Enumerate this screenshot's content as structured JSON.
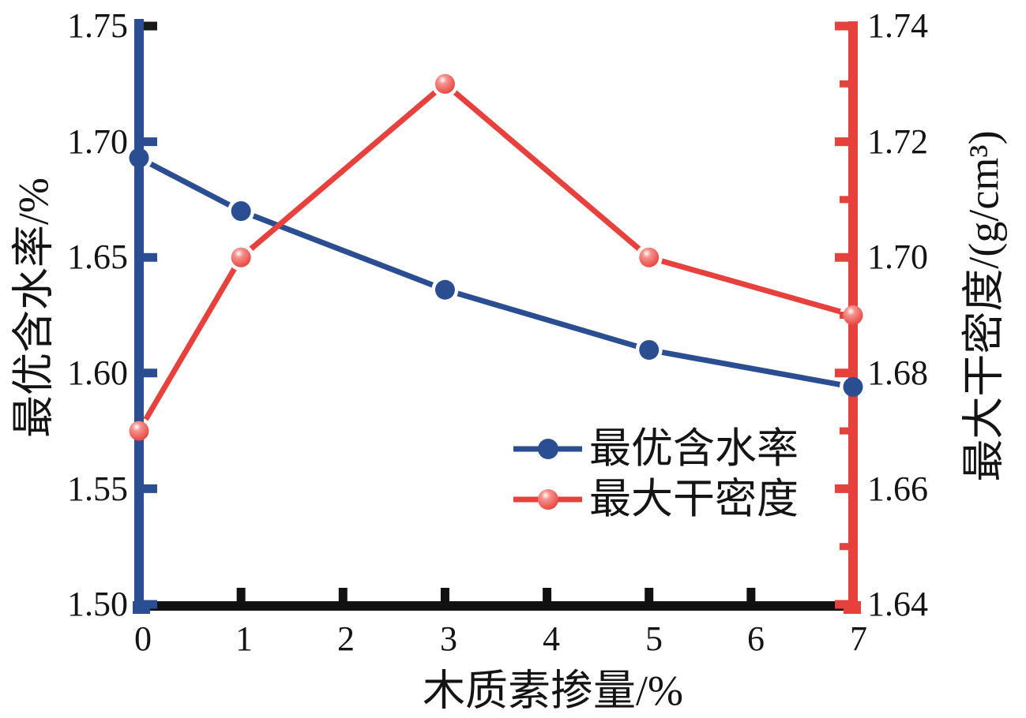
{
  "chart_data": {
    "type": "line",
    "xlabel": "木质素掺量/%",
    "x_range": [
      0,
      7
    ],
    "x_ticks": [
      "0",
      "1",
      "2",
      "3",
      "4",
      "5",
      "6",
      "7"
    ],
    "x": [
      0,
      1,
      3,
      5,
      7
    ],
    "series": [
      {
        "name": "最优含水率",
        "axis": "left",
        "color": "#2b4e93",
        "marker": "solid-circle",
        "values": [
          1.693,
          1.67,
          1.636,
          1.61,
          1.594
        ]
      },
      {
        "name": "最大干密度",
        "axis": "right",
        "color": "#e6413c",
        "marker": "glossy-sphere",
        "values": [
          1.67,
          1.7,
          1.73,
          1.7,
          1.69
        ]
      }
    ],
    "left_axis": {
      "label": "最优含水率/%",
      "color": "#2b4e93",
      "min": 1.5,
      "max": 1.75,
      "ticks": [
        "1.75",
        "1.70",
        "1.65",
        "1.60",
        "1.55",
        "1.50"
      ]
    },
    "right_axis": {
      "label": "最大干密度/(g/cm³)",
      "color": "#e6413c",
      "min": 1.64,
      "max": 1.74,
      "ticks": [
        "1.74",
        "1.72",
        "1.70",
        "1.68",
        "1.66",
        "1.64"
      ],
      "minor_ticks": [
        1.73,
        1.71,
        1.69,
        1.67,
        1.65
      ]
    },
    "x_axis_color": "#111111",
    "legend_position": "inside-right-middle",
    "grid": "off"
  }
}
